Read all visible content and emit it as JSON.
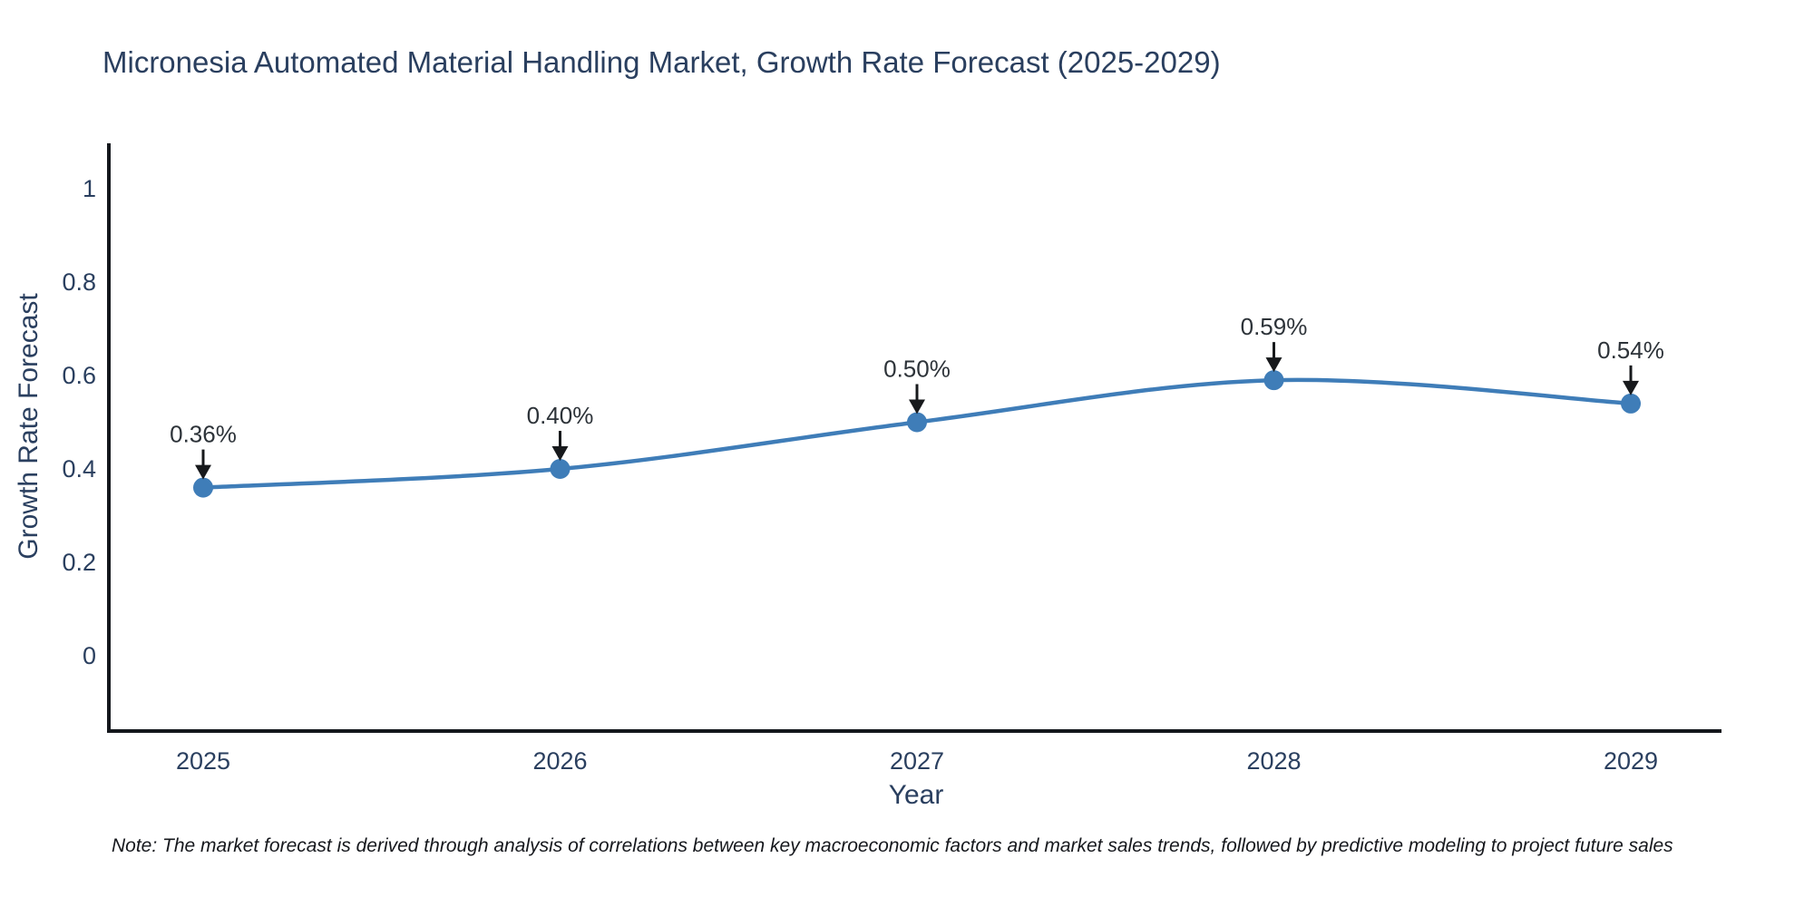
{
  "title": "Micronesia Automated Material Handling Market, Growth Rate Forecast (2025-2029)",
  "note": "Note: The market forecast is derived through analysis of correlations between key macroeconomic factors and market sales trends, followed by predictive modeling to project future sales",
  "chart_data": {
    "type": "line",
    "title": "Micronesia Automated Material Handling Market, Growth Rate Forecast (2025-2029)",
    "xlabel": "Year",
    "ylabel": "Growth Rate Forecast",
    "x": [
      2025,
      2026,
      2027,
      2028,
      2029
    ],
    "xtick_labels": [
      "2025",
      "2026",
      "2027",
      "2028",
      "2029"
    ],
    "values": [
      0.36,
      0.4,
      0.5,
      0.59,
      0.54
    ],
    "point_labels": [
      "0.36%",
      "0.40%",
      "0.50%",
      "0.59%",
      "0.54%"
    ],
    "yticks": [
      0,
      0.2,
      0.4,
      0.6,
      0.8,
      1
    ],
    "ytick_labels": [
      "0",
      "0.2",
      "0.4",
      "0.6",
      "0.8",
      "1"
    ],
    "ylim": [
      -0.16,
      1.1
    ],
    "grid": false,
    "legend": "none",
    "line_shape": "spline",
    "marker_style": "circle",
    "annotation_arrows": true,
    "colors": {
      "line": "#3f7db8",
      "marker": "#3f7db8",
      "axis": "#14171c",
      "tick_text": "#2a3f5f",
      "annotation_text": "#2d3339",
      "arrow": "#17191c",
      "background": "#ffffff"
    }
  }
}
